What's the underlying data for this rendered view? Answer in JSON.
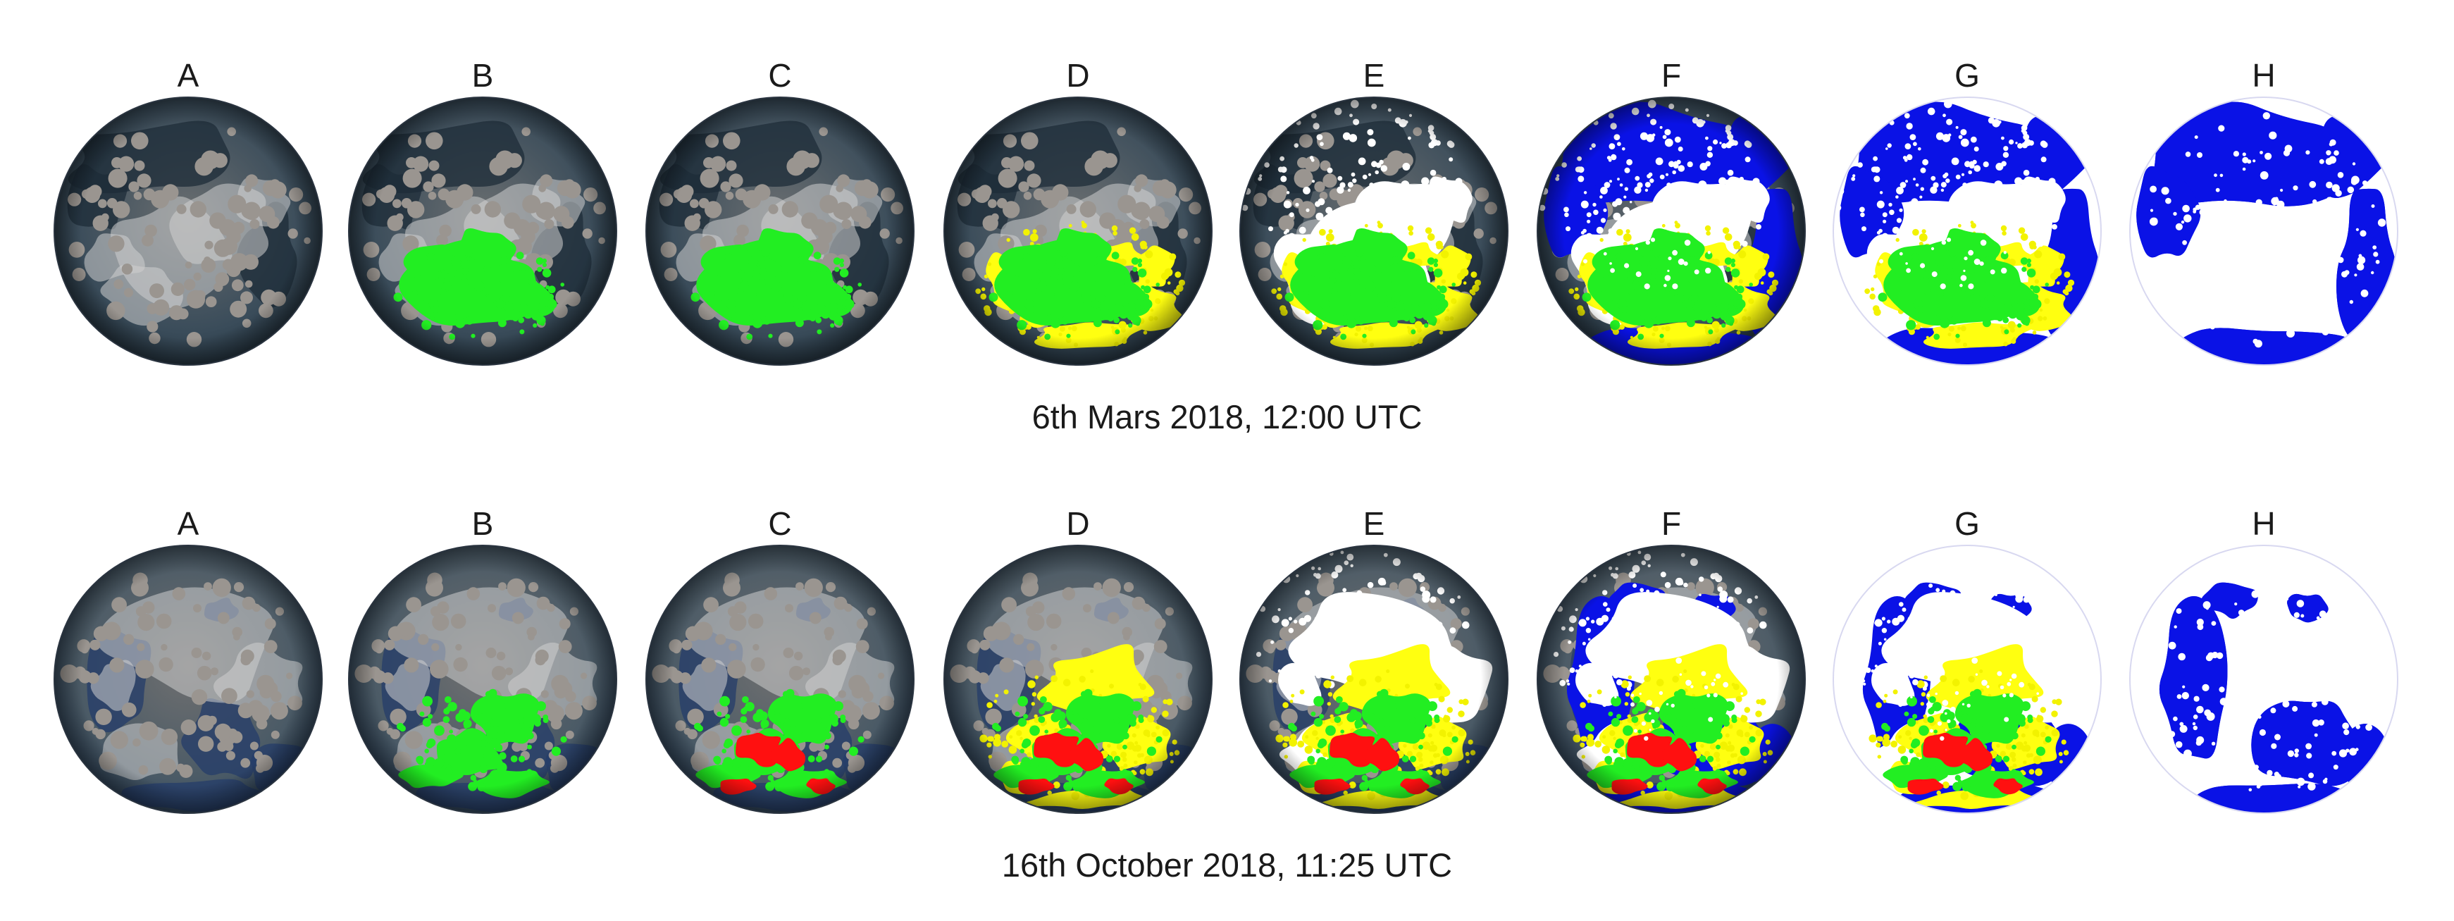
{
  "figure": {
    "rows": [
      {
        "caption": "6th Mars 2018, 12:00 UTC",
        "panels": [
          {
            "label": "A",
            "sky": "overcast",
            "class_colors": []
          },
          {
            "label": "B",
            "sky": "overcast",
            "class_colors": [
              "#22ff22"
            ]
          },
          {
            "label": "C",
            "sky": "overcast",
            "class_colors": [
              "#22ff22"
            ]
          },
          {
            "label": "D",
            "sky": "overcast",
            "class_colors": [
              "#22ff22",
              "#ffff00"
            ]
          },
          {
            "label": "E",
            "sky": "overcast",
            "class_colors": [
              "#22ff22",
              "#ffff00",
              "#ffffff"
            ]
          },
          {
            "label": "F",
            "sky": "overcast",
            "class_colors": [
              "#22ff22",
              "#ffff00",
              "#ffffff",
              "#0000ff"
            ]
          },
          {
            "label": "G",
            "sky": "overcast",
            "class_colors": [
              "#22ff22",
              "#ffff00",
              "#ffffff",
              "#0000ff"
            ]
          },
          {
            "label": "H",
            "sky": "overcast",
            "class_colors": [
              "#ffffff",
              "#0000ff"
            ]
          }
        ]
      },
      {
        "caption": "16th October 2018, 11:25 UTC",
        "panels": [
          {
            "label": "A",
            "sky": "broken",
            "class_colors": []
          },
          {
            "label": "B",
            "sky": "broken",
            "class_colors": [
              "#22ff22"
            ]
          },
          {
            "label": "C",
            "sky": "broken",
            "class_colors": [
              "#22ff22",
              "#ff0000"
            ]
          },
          {
            "label": "D",
            "sky": "broken",
            "class_colors": [
              "#22ff22",
              "#ff0000",
              "#ffff00"
            ]
          },
          {
            "label": "E",
            "sky": "broken",
            "class_colors": [
              "#22ff22",
              "#ff0000",
              "#ffff00",
              "#ffffff"
            ]
          },
          {
            "label": "F",
            "sky": "broken",
            "class_colors": [
              "#22ff22",
              "#ff0000",
              "#ffff00",
              "#ffffff",
              "#0000ff"
            ]
          },
          {
            "label": "G",
            "sky": "broken",
            "class_colors": [
              "#22ff22",
              "#ff0000",
              "#ffff00",
              "#ffffff",
              "#0000ff"
            ]
          },
          {
            "label": "H",
            "sky": "broken",
            "class_colors": [
              "#ffffff",
              "#0000ff"
            ]
          }
        ]
      }
    ]
  }
}
